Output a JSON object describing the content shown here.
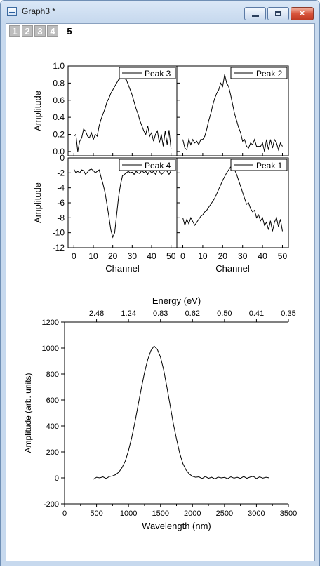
{
  "window": {
    "title": "Graph3 *",
    "close_glyph": "✕"
  },
  "layers": [
    "1",
    "2",
    "3",
    "4",
    "5"
  ],
  "active_layer": "5",
  "chart_data": [
    {
      "type": "line",
      "name": "Peak 3",
      "ylabel": "Amplitude",
      "xlabel": "",
      "xlim": [
        -3,
        53
      ],
      "ylim": [
        -0.05,
        1.0
      ],
      "yticks": [
        0.0,
        0.2,
        0.4,
        0.6,
        0.8,
        1.0
      ],
      "ytick_labels": [
        "0.0",
        "0.2",
        "0.4",
        "0.6",
        "0.8",
        "1.0"
      ],
      "xticks": [
        0,
        10,
        20,
        30,
        40,
        50
      ],
      "x": [
        0,
        1,
        2,
        3,
        4,
        5,
        6,
        7,
        8,
        9,
        10,
        11,
        12,
        13,
        14,
        15,
        16,
        17,
        18,
        19,
        20,
        21,
        22,
        23,
        24,
        25,
        26,
        27,
        28,
        29,
        30,
        31,
        32,
        33,
        34,
        35,
        36,
        37,
        38,
        39,
        40,
        41,
        42,
        43,
        44,
        45,
        46,
        47,
        48,
        49,
        50
      ],
      "values": [
        0.18,
        0.2,
        0.0,
        0.12,
        0.16,
        0.26,
        0.24,
        0.18,
        0.16,
        0.22,
        0.14,
        0.2,
        0.18,
        0.3,
        0.38,
        0.44,
        0.5,
        0.58,
        0.62,
        0.68,
        0.72,
        0.76,
        0.8,
        0.84,
        0.85,
        0.86,
        0.85,
        0.84,
        0.78,
        0.72,
        0.66,
        0.58,
        0.5,
        0.44,
        0.36,
        0.3,
        0.24,
        0.2,
        0.3,
        0.18,
        0.22,
        0.12,
        0.2,
        0.24,
        0.1,
        0.2,
        0.06,
        0.24,
        0.08,
        0.25,
        0.03
      ]
    },
    {
      "type": "line",
      "name": "Peak 2",
      "ylabel": "",
      "xlabel": "",
      "xlim": [
        -3,
        53
      ],
      "ylim": [
        -0.05,
        1.0
      ],
      "yticks": [
        0.0,
        0.2,
        0.4,
        0.6,
        0.8,
        1.0
      ],
      "xticks": [
        0,
        10,
        20,
        30,
        40,
        50
      ],
      "x": [
        0,
        1,
        2,
        3,
        4,
        5,
        6,
        7,
        8,
        9,
        10,
        11,
        12,
        13,
        14,
        15,
        16,
        17,
        18,
        19,
        20,
        21,
        22,
        23,
        24,
        25,
        26,
        27,
        28,
        29,
        30,
        31,
        32,
        33,
        34,
        35,
        36,
        37,
        38,
        39,
        40,
        41,
        42,
        43,
        44,
        45,
        46,
        47,
        48,
        49,
        50
      ],
      "values": [
        0.14,
        0.04,
        0.02,
        0.14,
        0.08,
        0.14,
        0.1,
        0.12,
        0.08,
        0.14,
        0.14,
        0.18,
        0.26,
        0.36,
        0.44,
        0.54,
        0.62,
        0.68,
        0.72,
        0.8,
        0.76,
        0.9,
        0.8,
        0.76,
        0.66,
        0.55,
        0.44,
        0.36,
        0.28,
        0.22,
        0.12,
        0.14,
        0.06,
        0.04,
        0.1,
        0.08,
        0.14,
        0.06,
        0.06,
        0.06,
        0.1,
        0.0,
        0.14,
        0.02,
        0.14,
        0.04,
        0.14,
        0.1,
        0.02,
        0.1,
        0.06
      ]
    },
    {
      "type": "line",
      "name": "Peak 4",
      "ylabel": "Amplitude",
      "xlabel": "Channel",
      "xlim": [
        -3,
        53
      ],
      "ylim": [
        -12,
        0
      ],
      "yticks": [
        -12,
        -10,
        -8,
        -6,
        -4,
        -2,
        0
      ],
      "ytick_labels": [
        "-12",
        "-10",
        "-8",
        "-6",
        "-4",
        "-2",
        "0"
      ],
      "xticks": [
        0,
        10,
        20,
        30,
        40,
        50
      ],
      "xtick_labels": [
        "0",
        "10",
        "20",
        "30",
        "40",
        "50"
      ],
      "x": [
        0,
        1,
        2,
        3,
        4,
        5,
        6,
        7,
        8,
        9,
        10,
        11,
        12,
        13,
        14,
        15,
        16,
        17,
        18,
        19,
        20,
        21,
        22,
        23,
        24,
        25,
        26,
        27,
        28,
        29,
        30,
        31,
        32,
        33,
        34,
        35,
        36,
        37,
        38,
        39,
        40,
        41,
        42,
        43,
        44,
        45,
        46,
        47,
        48,
        49,
        50
      ],
      "values": [
        -1.5,
        -2.0,
        -1.8,
        -2.0,
        -1.6,
        -1.7,
        -2.2,
        -1.9,
        -1.6,
        -1.5,
        -1.7,
        -2.0,
        -1.8,
        -1.6,
        -2.6,
        -3.5,
        -4.6,
        -6.2,
        -7.8,
        -9.6,
        -10.6,
        -10.0,
        -7.6,
        -5.2,
        -3.6,
        -2.4,
        -2.2,
        -2.0,
        -1.8,
        -2.0,
        -1.9,
        -2.2,
        -1.8,
        -2.0,
        -2.1,
        -1.6,
        -2.0,
        -1.8,
        -2.2,
        -1.7,
        -2.0,
        -1.8,
        -2.2,
        -1.6,
        -1.8,
        -2.2,
        -2.0,
        -1.6,
        -1.8,
        -2.2,
        -1.7
      ]
    },
    {
      "type": "line",
      "name": "Peak 1",
      "ylabel": "",
      "xlabel": "Channel",
      "xlim": [
        -3,
        53
      ],
      "ylim": [
        -12,
        0
      ],
      "yticks": [
        -12,
        -10,
        -8,
        -6,
        -4,
        -2,
        0
      ],
      "xticks": [
        0,
        10,
        20,
        30,
        40,
        50
      ],
      "xtick_labels": [
        "0",
        "10",
        "20",
        "30",
        "40",
        "50"
      ],
      "x": [
        0,
        1,
        2,
        3,
        4,
        5,
        6,
        7,
        8,
        9,
        10,
        11,
        12,
        13,
        14,
        15,
        16,
        17,
        18,
        19,
        20,
        21,
        22,
        23,
        24,
        25,
        26,
        27,
        28,
        29,
        30,
        31,
        32,
        33,
        34,
        35,
        36,
        37,
        38,
        39,
        40,
        41,
        42,
        43,
        44,
        45,
        46,
        47,
        48,
        49,
        50
      ],
      "values": [
        -8.0,
        -9.0,
        -8.2,
        -8.8,
        -8.0,
        -8.5,
        -9.0,
        -8.6,
        -8.2,
        -7.8,
        -7.6,
        -7.2,
        -7.0,
        -6.6,
        -6.2,
        -5.8,
        -5.4,
        -4.8,
        -4.2,
        -3.6,
        -3.0,
        -2.5,
        -2.0,
        -1.6,
        -1.2,
        -1.0,
        -1.6,
        -2.2,
        -3.0,
        -3.8,
        -4.6,
        -5.4,
        -6.2,
        -6.0,
        -6.8,
        -7.2,
        -7.0,
        -8.0,
        -7.6,
        -8.4,
        -8.0,
        -9.0,
        -8.6,
        -9.6,
        -8.4,
        -9.8,
        -8.6,
        -8.0,
        -9.2,
        -8.2,
        -9.8
      ]
    },
    {
      "type": "line",
      "name": "",
      "title": "",
      "xlabel": "Wavelength (nm)",
      "ylabel": "Amplitude (arb. units)",
      "top_axis_label": "Energy (eV)",
      "xlim": [
        0,
        3500
      ],
      "ylim": [
        -200,
        1200
      ],
      "xticks": [
        0,
        500,
        1000,
        1500,
        2000,
        2500,
        3000,
        3500
      ],
      "xtick_labels": [
        "0",
        "500",
        "1000",
        "1500",
        "2000",
        "2500",
        "3000",
        "3500"
      ],
      "yticks": [
        -200,
        0,
        200,
        400,
        600,
        800,
        1000,
        1200
      ],
      "ytick_labels": [
        "-200",
        "0",
        "200",
        "400",
        "600",
        "800",
        "1000",
        "1200"
      ],
      "top_ticks": [
        500,
        1000,
        1500,
        2000,
        2500,
        3000,
        3500
      ],
      "top_tick_labels": [
        "2.48",
        "1.24",
        "0.83",
        "0.62",
        "0.50",
        "0.41",
        "0.35"
      ],
      "x": [
        450,
        500,
        550,
        600,
        650,
        700,
        750,
        800,
        850,
        900,
        950,
        1000,
        1050,
        1100,
        1150,
        1200,
        1250,
        1300,
        1350,
        1400,
        1450,
        1500,
        1550,
        1600,
        1650,
        1700,
        1750,
        1800,
        1850,
        1900,
        1950,
        2000,
        2050,
        2100,
        2150,
        2200,
        2250,
        2300,
        2350,
        2400,
        2450,
        2500,
        2550,
        2600,
        2650,
        2700,
        2750,
        2800,
        2850,
        2900,
        2950,
        3000,
        3050,
        3100,
        3150,
        3200
      ],
      "values": [
        -10,
        5,
        0,
        8,
        -5,
        10,
        15,
        25,
        45,
        80,
        130,
        210,
        310,
        430,
        560,
        690,
        810,
        910,
        980,
        1015,
        990,
        930,
        830,
        700,
        560,
        420,
        300,
        190,
        110,
        60,
        30,
        12,
        5,
        8,
        -5,
        10,
        -3,
        5,
        -8,
        6,
        0,
        4,
        -6,
        8,
        -2,
        5,
        -4,
        10,
        -3,
        6,
        12,
        -5,
        8,
        -2,
        5,
        0
      ]
    }
  ]
}
